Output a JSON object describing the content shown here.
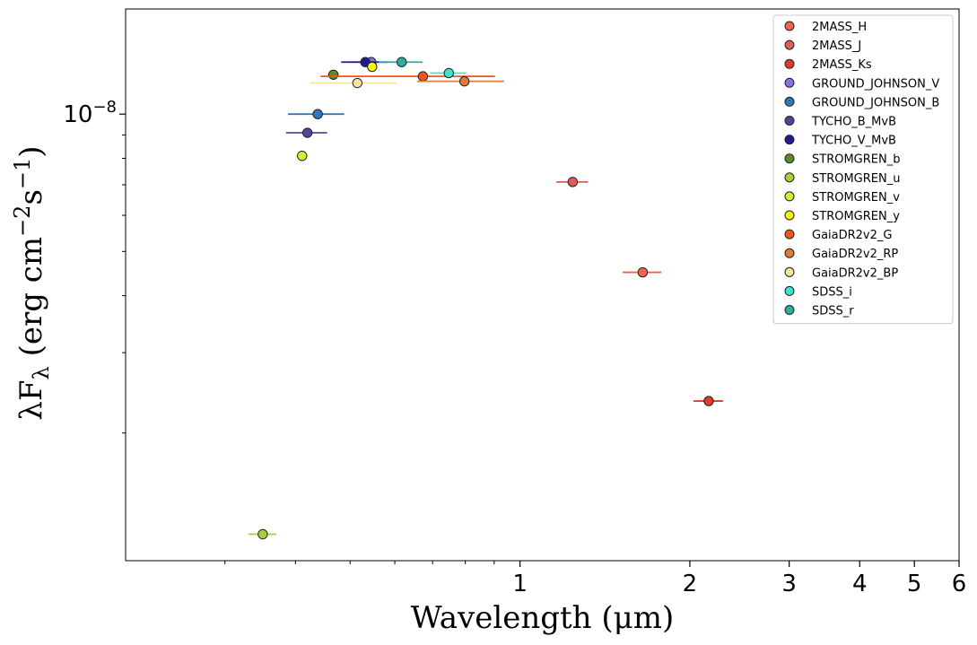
{
  "chart_data": {
    "type": "scatter",
    "xscale": "log",
    "yscale": "log",
    "xlabel": "Wavelength (μm)",
    "ylabel": "λF_λ (erg cm^-2 s^-1)",
    "xlim": [
      0.2,
      6.0
    ],
    "ylim": [
      1.05e-09,
      1.7e-08
    ],
    "xticks": [
      {
        "value": 1,
        "label": "1"
      },
      {
        "value": 2,
        "label": "2"
      },
      {
        "value": 3,
        "label": "3"
      },
      {
        "value": 4,
        "label": "4"
      },
      {
        "value": 5,
        "label": "5"
      },
      {
        "value": 6,
        "label": "6"
      }
    ],
    "yticks": [
      {
        "value": 1e-08,
        "base": "10",
        "exp": "−8"
      }
    ],
    "grid": false,
    "legend_position": "top-right",
    "series": [
      {
        "name": "2MASS_H",
        "color": "#f2654a",
        "points": [
          {
            "x": 1.65,
            "y": 4.5e-09,
            "xerr": 0.13
          }
        ]
      },
      {
        "name": "2MASS_J",
        "color": "#d9605a",
        "points": [
          {
            "x": 1.24,
            "y": 7.1e-09,
            "xerr": 0.08
          }
        ]
      },
      {
        "name": "2MASS_Ks",
        "color": "#e03a2c",
        "points": [
          {
            "x": 2.16,
            "y": 2.35e-09,
            "xerr": 0.13
          }
        ]
      },
      {
        "name": "GROUND_JOHNSON_V",
        "color": "#8474e0",
        "points": [
          {
            "x": 0.545,
            "y": 1.3e-08,
            "xerr": 0.045
          }
        ]
      },
      {
        "name": "GROUND_JOHNSON_B",
        "color": "#2f79b8",
        "points": [
          {
            "x": 0.438,
            "y": 1e-08,
            "xerr": 0.05
          }
        ]
      },
      {
        "name": "TYCHO_B_MvB",
        "color": "#51479a",
        "points": [
          {
            "x": 0.42,
            "y": 9.1e-09,
            "xerr": 0.035
          }
        ]
      },
      {
        "name": "TYCHO_V_MvB",
        "color": "#1f1a96",
        "points": [
          {
            "x": 0.532,
            "y": 1.3e-08,
            "xerr": 0.05
          }
        ]
      },
      {
        "name": "STROMGREN_b",
        "color": "#5b8c2a",
        "points": [
          {
            "x": 0.467,
            "y": 1.22e-08,
            "xerr": 0.01
          }
        ]
      },
      {
        "name": "STROMGREN_u",
        "color": "#a6cf3b",
        "points": [
          {
            "x": 0.35,
            "y": 1.2e-09,
            "xerr": 0.02
          }
        ]
      },
      {
        "name": "STROMGREN_v",
        "color": "#c8f23c",
        "points": [
          {
            "x": 0.411,
            "y": 8.1e-09,
            "xerr": 0.01
          }
        ]
      },
      {
        "name": "STROMGREN_y",
        "color": "#f5f50e",
        "points": [
          {
            "x": 0.547,
            "y": 1.27e-08,
            "xerr": 0.01
          }
        ]
      },
      {
        "name": "GaiaDR2v2_G",
        "color": "#f25518",
        "points": [
          {
            "x": 0.673,
            "y": 1.21e-08,
            "xerr": 0.23
          }
        ]
      },
      {
        "name": "GaiaDR2v2_RP",
        "color": "#e07c34",
        "points": [
          {
            "x": 0.797,
            "y": 1.18e-08,
            "xerr": 0.14
          }
        ]
      },
      {
        "name": "GaiaDR2v2_BP",
        "color": "#f6e3a0",
        "points": [
          {
            "x": 0.515,
            "y": 1.17e-08,
            "xerr": 0.09
          }
        ]
      },
      {
        "name": "SDSS_i",
        "color": "#40e0d0",
        "points": [
          {
            "x": 0.748,
            "y": 1.23e-08,
            "xerr": 0.055
          }
        ]
      },
      {
        "name": "SDSS_r",
        "color": "#2ab0a0",
        "points": [
          {
            "x": 0.617,
            "y": 1.3e-08,
            "xerr": 0.055
          }
        ]
      }
    ]
  }
}
